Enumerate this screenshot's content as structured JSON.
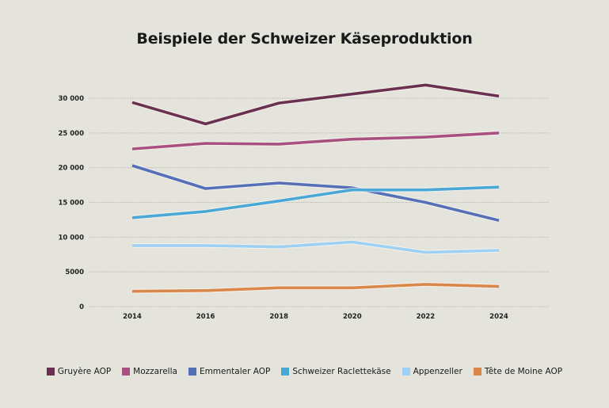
{
  "chart_data": {
    "type": "line",
    "title": "Beispiele der Schweizer Käseproduktion",
    "xlabel": "",
    "ylabel": "",
    "x": [
      2014,
      2016,
      2018,
      2020,
      2022,
      2024
    ],
    "x_tick_labels": [
      "2014",
      "2016",
      "2018",
      "2020",
      "2022",
      "2024"
    ],
    "ylim": [
      0,
      30000
    ],
    "y_ticks": [
      0,
      5000,
      10000,
      15000,
      20000,
      25000,
      30000
    ],
    "y_tick_labels": [
      "0",
      "5000",
      "10 000",
      "15 000",
      "20 000",
      "25 000",
      "30 000"
    ],
    "grid": true,
    "legend_position": "bottom",
    "series": [
      {
        "name": "Gruyère AOP",
        "color": "#6b3150",
        "values": [
          29400,
          26300,
          29300,
          30600,
          31900,
          30300
        ]
      },
      {
        "name": "Mozzarella",
        "color": "#a8507f",
        "values": [
          22700,
          23500,
          23400,
          24100,
          24400,
          25000
        ]
      },
      {
        "name": "Emmentaler AOP",
        "color": "#5570b8",
        "values": [
          20300,
          17000,
          17800,
          17100,
          15000,
          12400
        ]
      },
      {
        "name": "Schweizer Raclettekäse",
        "color": "#4aa8d6",
        "values": [
          12800,
          13700,
          15200,
          16800,
          16800,
          17200
        ]
      },
      {
        "name": "Appenzeller",
        "color": "#9dd0f2",
        "values": [
          8800,
          8800,
          8600,
          9300,
          7800,
          8100
        ]
      },
      {
        "name": "Tête de Moine AOP",
        "color": "#d9874a",
        "values": [
          2200,
          2300,
          2700,
          2700,
          3200,
          2900
        ]
      }
    ]
  }
}
